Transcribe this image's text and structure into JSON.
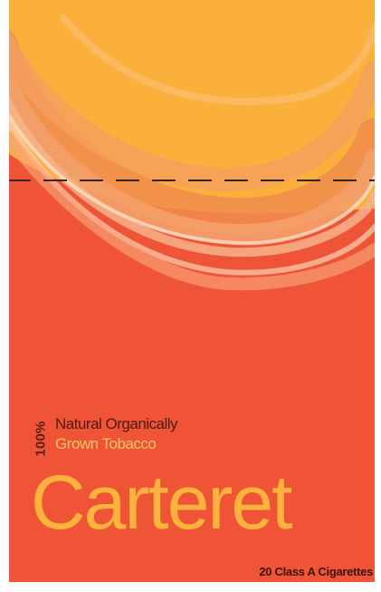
{
  "pack": {
    "badge": "100%",
    "claim_line1": "Natural Organically",
    "claim_line2": "Grown Tobacco",
    "brand": "Carteret",
    "count": "20 Class A Cigarettes"
  },
  "colors": {
    "background": "#ef5436",
    "sun": "#fbb03b",
    "brand_text": "#ffb33c",
    "claim_accent": "#fbc86a",
    "dark_text": "#4d1a0f",
    "cut_line": "#3a2418"
  }
}
